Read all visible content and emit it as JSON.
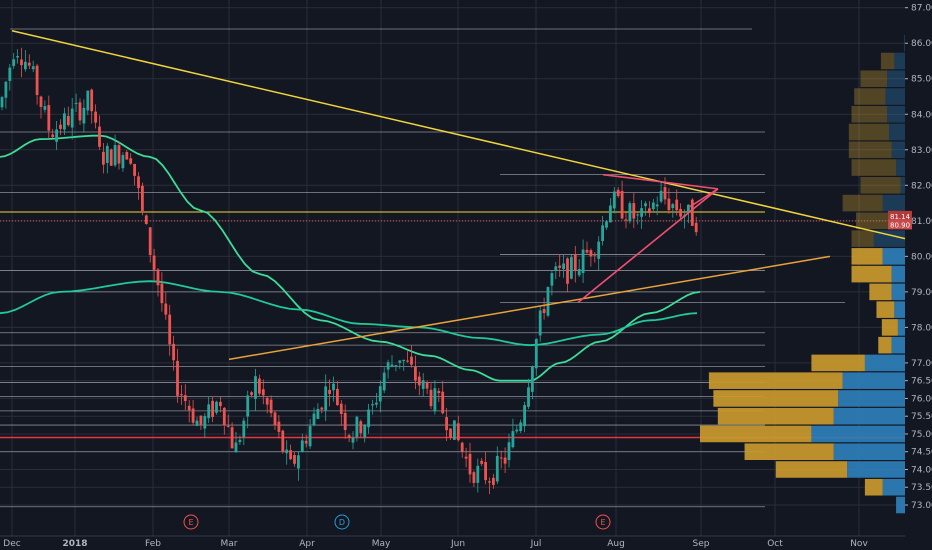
{
  "chart_data": {
    "type": "candlestick",
    "y_axis": {
      "range": [
        72.8,
        87.2
      ],
      "ticks": [
        "87.00",
        "86.00",
        "85.00",
        "84.00",
        "83.00",
        "82.00",
        "81.00",
        "80.00",
        "79.00",
        "78.00",
        "77.00",
        "76.50",
        "76.00",
        "75.50",
        "75.00",
        "74.50",
        "74.00",
        "73.50",
        "73.00"
      ],
      "price_labels": [
        "81.14",
        "80.90"
      ]
    },
    "x_axis": {
      "ticks": [
        {
          "label": "Dec",
          "bold": false
        },
        {
          "label": "2018",
          "bold": true
        },
        {
          "label": "Feb",
          "bold": false
        },
        {
          "label": "Mar",
          "bold": false
        },
        {
          "label": "Apr",
          "bold": false
        },
        {
          "label": "May",
          "bold": false
        },
        {
          "label": "Jun",
          "bold": false
        },
        {
          "label": "Jul",
          "bold": false
        },
        {
          "label": "Aug",
          "bold": false
        },
        {
          "label": "Sep",
          "bold": false
        },
        {
          "label": "Oct",
          "bold": false
        },
        {
          "label": "Nov",
          "bold": false
        }
      ]
    },
    "events": [
      {
        "label": "E",
        "month": "Feb"
      },
      {
        "label": "D",
        "month": "Apr"
      },
      {
        "label": "E",
        "month": "Aug"
      }
    ],
    "horizontal_levels": [
      86.4,
      83.5,
      82.3,
      81.8,
      81.25,
      80.05,
      79.6,
      79.0,
      78.7,
      77.85,
      77.5,
      76.9,
      76.45,
      76.05,
      75.65,
      75.25,
      74.5,
      72.95
    ],
    "key_levels": {
      "yellow": 81.25,
      "red_dotted": 81.0,
      "red_support": 74.9
    },
    "trendlines": [
      {
        "color": "#f0d43a",
        "from": [
          86.35,
          "Dec"
        ],
        "to": [
          80.5,
          "Nov"
        ]
      },
      {
        "color": "#e8a33a",
        "from": [
          77.1,
          "Mar"
        ],
        "to": [
          80.0,
          "Oct"
        ]
      }
    ],
    "triangle": {
      "color": "#f0506e",
      "upper": [
        82.3,
        81.9
      ],
      "lower": [
        78.7,
        81.5
      ]
    },
    "volume_profile": {
      "price_step": 0.5,
      "buy_sell": [
        {
          "price": 86.0,
          "buy": 1,
          "sell": 0
        },
        {
          "price": 85.5,
          "buy": 12,
          "sell": 15
        },
        {
          "price": 85.0,
          "buy": 20,
          "sell": 30
        },
        {
          "price": 84.5,
          "buy": 22,
          "sell": 35
        },
        {
          "price": 84.0,
          "buy": 20,
          "sell": 40
        },
        {
          "price": 83.5,
          "buy": 18,
          "sell": 45
        },
        {
          "price": 83.0,
          "buy": 15,
          "sell": 48
        },
        {
          "price": 82.5,
          "buy": 10,
          "sell": 50
        },
        {
          "price": 82.0,
          "buy": 5,
          "sell": 45
        },
        {
          "price": 81.5,
          "buy": 25,
          "sell": 45
        },
        {
          "price": 81.0,
          "buy": 15,
          "sell": 40
        },
        {
          "price": 80.5,
          "buy": 35,
          "sell": 25
        },
        {
          "price": 80.0,
          "buy": 25,
          "sell": 35
        },
        {
          "price": 79.5,
          "buy": 15,
          "sell": 45
        },
        {
          "price": 79.0,
          "buy": 15,
          "sell": 25
        },
        {
          "price": 78.5,
          "buy": 12,
          "sell": 20
        },
        {
          "price": 78.0,
          "buy": 8,
          "sell": 18
        },
        {
          "price": 77.5,
          "buy": 15,
          "sell": 15
        },
        {
          "price": 77.0,
          "buy": 45,
          "sell": 60
        },
        {
          "price": 76.5,
          "buy": 70,
          "sell": 150
        },
        {
          "price": 76.0,
          "buy": 75,
          "sell": 140
        },
        {
          "price": 75.5,
          "buy": 80,
          "sell": 130
        },
        {
          "price": 75.0,
          "buy": 105,
          "sell": 125
        },
        {
          "price": 74.5,
          "buy": 80,
          "sell": 100
        },
        {
          "price": 74.0,
          "buy": 65,
          "sell": 80
        },
        {
          "price": 73.5,
          "buy": 25,
          "sell": 20
        },
        {
          "price": 73.0,
          "buy": 10,
          "sell": 0
        }
      ]
    }
  },
  "colors": {
    "background": "#131722",
    "grid": "#2a2e39",
    "level": "#b2b5be",
    "up_candle": "#26a69a",
    "down_candle": "#ef5350",
    "ma_fast": "#3ddc97",
    "ma_slow": "#20c997",
    "profile_up": "#2e7fb8",
    "profile_down": "#c99a2e",
    "event_red": "#ef5350",
    "event_blue": "#2e9ad6"
  }
}
